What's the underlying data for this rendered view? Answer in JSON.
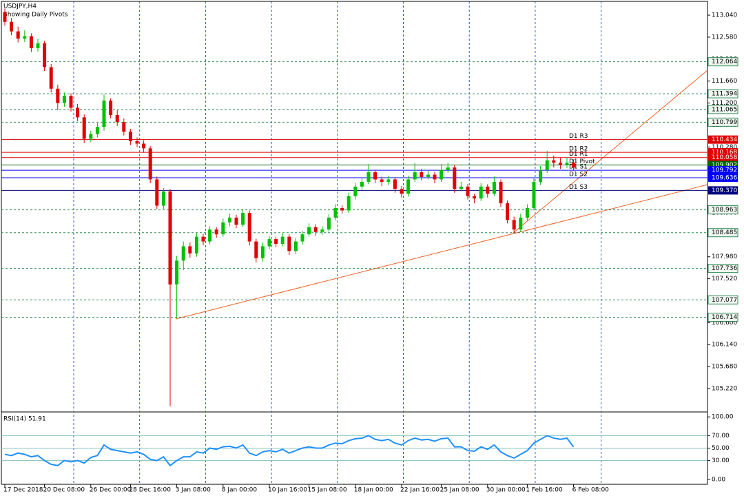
{
  "chart_data": [
    {
      "type": "candlestick",
      "title": "USDJPY,H4",
      "subtitle": "Showing Daily Pivots",
      "categories": [
        "17 Dec 2018",
        null,
        null,
        null,
        null,
        null,
        "20 Dec 08:00",
        null,
        null,
        null,
        null,
        null,
        null,
        "26 Dec 00:00",
        null,
        null,
        null,
        null,
        null,
        "28 Dec 16:00",
        null,
        null,
        null,
        null,
        null,
        null,
        "3 Jan 08:00",
        null,
        null,
        null,
        null,
        null,
        null,
        "8 Jan 00:00",
        null,
        null,
        null,
        null,
        null,
        null,
        "10 Jan 16:00",
        null,
        null,
        null,
        null,
        null,
        "15 Jan 08:00",
        null,
        null,
        null,
        null,
        null,
        null,
        "18 Jan 00:00",
        null,
        null,
        null,
        null,
        null,
        null,
        "22 Jan 16:00",
        null,
        null,
        null,
        null,
        null,
        "25 Jan 08:00",
        null,
        null,
        null,
        null,
        null,
        null,
        "30 Jan 00:00",
        null,
        null,
        null,
        null,
        null,
        "1 Feb 16:00",
        null,
        null,
        null,
        null,
        null,
        null,
        "6 Feb 08:00"
      ],
      "ohlc": [
        [
          113.1,
          113.18,
          112.82,
          112.9
        ],
        [
          112.9,
          112.98,
          112.62,
          112.7
        ],
        [
          112.7,
          112.8,
          112.47,
          112.55
        ],
        [
          112.55,
          112.72,
          112.48,
          112.6
        ],
        [
          112.6,
          112.66,
          112.27,
          112.35
        ],
        [
          112.35,
          112.55,
          112.28,
          112.45
        ],
        [
          112.45,
          112.5,
          111.87,
          111.95
        ],
        [
          111.95,
          112.02,
          111.42,
          111.5
        ],
        [
          111.5,
          111.58,
          111.05,
          111.2
        ],
        [
          111.2,
          111.42,
          111.12,
          111.35
        ],
        [
          111.35,
          111.4,
          111.02,
          111.1
        ],
        [
          111.1,
          111.18,
          110.82,
          110.9
        ],
        [
          110.9,
          110.96,
          110.36,
          110.45
        ],
        [
          110.45,
          110.62,
          110.38,
          110.55
        ],
        [
          110.55,
          110.78,
          110.48,
          110.7
        ],
        [
          110.7,
          111.38,
          110.62,
          111.25
        ],
        [
          111.25,
          111.3,
          110.88,
          110.95
        ],
        [
          110.95,
          111.05,
          110.72,
          110.8
        ],
        [
          110.8,
          110.88,
          110.52,
          110.6
        ],
        [
          110.6,
          110.66,
          110.32,
          110.4
        ],
        [
          110.4,
          110.48,
          110.28,
          110.35
        ],
        [
          110.35,
          110.42,
          110.16,
          110.25
        ],
        [
          110.25,
          110.3,
          109.52,
          109.6
        ],
        [
          109.6,
          109.66,
          108.98,
          109.05
        ],
        [
          109.05,
          109.42,
          108.98,
          109.35
        ],
        [
          109.35,
          109.4,
          104.85,
          107.4
        ],
        [
          107.4,
          108.0,
          106.69,
          107.9
        ],
        [
          107.9,
          108.3,
          107.7,
          108.2
        ],
        [
          108.2,
          108.28,
          107.96,
          108.05
        ],
        [
          108.05,
          108.48,
          107.98,
          108.4
        ],
        [
          108.4,
          108.46,
          108.22,
          108.3
        ],
        [
          108.3,
          108.62,
          108.24,
          108.55
        ],
        [
          108.55,
          108.6,
          108.38,
          108.45
        ],
        [
          108.45,
          108.78,
          108.4,
          108.7
        ],
        [
          108.7,
          108.88,
          108.62,
          108.8
        ],
        [
          108.8,
          108.86,
          108.58,
          108.65
        ],
        [
          108.65,
          108.98,
          108.6,
          108.9
        ],
        [
          108.9,
          108.95,
          108.22,
          108.3
        ],
        [
          108.3,
          108.36,
          107.86,
          107.95
        ],
        [
          107.95,
          108.28,
          107.88,
          108.2
        ],
        [
          108.2,
          108.42,
          108.14,
          108.35
        ],
        [
          108.35,
          108.4,
          108.18,
          108.25
        ],
        [
          108.25,
          108.48,
          108.2,
          108.4
        ],
        [
          108.4,
          108.45,
          108.02,
          108.1
        ],
        [
          108.1,
          108.38,
          108.04,
          108.3
        ],
        [
          108.3,
          108.52,
          108.24,
          108.45
        ],
        [
          108.45,
          108.68,
          108.4,
          108.6
        ],
        [
          108.6,
          108.66,
          108.42,
          108.5
        ],
        [
          108.5,
          108.62,
          108.44,
          108.55
        ],
        [
          108.55,
          108.88,
          108.5,
          108.8
        ],
        [
          108.8,
          109.08,
          108.74,
          109.0
        ],
        [
          109.0,
          109.06,
          108.88,
          108.95
        ],
        [
          108.95,
          109.32,
          108.9,
          109.25
        ],
        [
          109.25,
          109.52,
          109.18,
          109.45
        ],
        [
          109.45,
          109.62,
          109.38,
          109.55
        ],
        [
          109.55,
          109.92,
          109.5,
          109.75
        ],
        [
          109.75,
          109.8,
          109.52,
          109.6
        ],
        [
          109.6,
          109.66,
          109.46,
          109.55
        ],
        [
          109.55,
          109.68,
          109.48,
          109.6
        ],
        [
          109.6,
          109.65,
          109.32,
          109.4
        ],
        [
          109.4,
          109.46,
          109.22,
          109.3
        ],
        [
          109.3,
          109.68,
          109.24,
          109.6
        ],
        [
          109.6,
          109.95,
          109.55,
          109.75
        ],
        [
          109.75,
          109.82,
          109.58,
          109.65
        ],
        [
          109.65,
          109.78,
          109.6,
          109.7
        ],
        [
          109.7,
          109.76,
          109.52,
          109.6
        ],
        [
          109.6,
          109.92,
          109.55,
          109.8
        ],
        [
          109.8,
          109.95,
          109.74,
          109.85
        ],
        [
          109.85,
          109.9,
          109.32,
          109.4
        ],
        [
          109.4,
          109.55,
          109.35,
          109.45
        ],
        [
          109.45,
          109.5,
          109.18,
          109.25
        ],
        [
          109.25,
          109.3,
          109.1,
          109.2
        ],
        [
          109.2,
          109.52,
          109.15,
          109.45
        ],
        [
          109.45,
          109.5,
          109.22,
          109.3
        ],
        [
          109.3,
          109.66,
          109.25,
          109.55
        ],
        [
          109.55,
          109.6,
          109.02,
          109.1
        ],
        [
          109.1,
          109.16,
          108.68,
          108.75
        ],
        [
          108.75,
          108.82,
          108.48,
          108.55
        ],
        [
          108.55,
          108.88,
          108.5,
          108.8
        ],
        [
          108.8,
          109.08,
          108.74,
          109.0
        ],
        [
          109.0,
          109.62,
          108.95,
          109.55
        ],
        [
          109.55,
          109.88,
          109.48,
          109.8
        ],
        [
          109.8,
          110.2,
          109.74,
          110.0
        ],
        [
          110.0,
          110.1,
          109.85,
          109.95
        ],
        [
          109.95,
          110.05,
          109.82,
          109.9
        ],
        [
          109.9,
          110.06,
          109.84,
          109.95
        ],
        [
          109.95,
          110.02,
          109.78,
          109.85
        ]
      ],
      "up_color": "#00c000",
      "down_color": "#e00000",
      "ylim": [
        104.744,
        113.329
      ],
      "yticks": [
        {
          "value": 113.04,
          "label": "113.040"
        },
        {
          "value": 112.58,
          "label": "112.580"
        },
        {
          "value": 112.12,
          "label": "112.120"
        },
        {
          "value": 111.66,
          "label": "111.660"
        },
        {
          "value": 111.2,
          "label": "111.200"
        },
        {
          "value": 110.74,
          "label": "110.740"
        },
        {
          "value": 110.28,
          "label": "110.280"
        },
        {
          "value": 109.82,
          "label": "109.820"
        },
        {
          "value": 109.36,
          "label": "109.360"
        },
        {
          "value": 108.9,
          "label": "108.900"
        },
        {
          "value": 108.44,
          "label": "108.440"
        },
        {
          "value": 107.98,
          "label": "107.980"
        },
        {
          "value": 107.52,
          "label": "107.520"
        },
        {
          "value": 107.06,
          "label": "107.060"
        },
        {
          "value": 106.6,
          "label": "106.600"
        },
        {
          "value": 106.14,
          "label": "106.140"
        },
        {
          "value": 105.68,
          "label": "105.680"
        },
        {
          "value": 105.22,
          "label": "105.220"
        }
      ],
      "levels": [
        {
          "value": 112.064,
          "label": "112.064"
        },
        {
          "value": 111.394,
          "label": "111.394"
        },
        {
          "value": 111.065,
          "label": "111.065"
        },
        {
          "value": 110.799,
          "label": "110.799"
        },
        {
          "value": 108.963,
          "label": "108.963"
        },
        {
          "value": 108.485,
          "label": "108.485"
        },
        {
          "value": 107.736,
          "label": "107.736"
        },
        {
          "value": 107.077,
          "label": "107.077"
        },
        {
          "value": 106.714,
          "label": "106.714"
        }
      ],
      "level_color": "#2e8b57",
      "pivots": [
        {
          "name": "D1 R3",
          "value": 110.434,
          "label": "110.434",
          "color": "#e00000"
        },
        {
          "name": "D1 R2",
          "value": 110.168,
          "label": "110.168",
          "color": "#e00000"
        },
        {
          "name": "D1 R1",
          "value": 110.058,
          "label": "110.058",
          "color": "#e00000"
        },
        {
          "name": "D1 Pivot",
          "value": 109.902,
          "label": "109.902",
          "color": "#006400"
        },
        {
          "name": "D1 S1",
          "value": 109.792,
          "label": "109.792",
          "color": "#0000ff"
        },
        {
          "name": "D1 S2",
          "value": 109.636,
          "label": "109.636",
          "color": "#0000ff"
        },
        {
          "name": "D1 S3",
          "value": 109.37,
          "label": "109.370",
          "color": "#000080"
        }
      ]
    },
    {
      "type": "line",
      "title": "RSI(14) 51.91",
      "values": [
        40,
        38,
        42,
        40,
        36,
        38,
        30,
        24,
        22,
        30,
        28,
        30,
        26,
        35,
        38,
        55,
        48,
        46,
        44,
        42,
        44,
        40,
        32,
        30,
        36,
        22,
        30,
        36,
        36,
        44,
        42,
        50,
        48,
        52,
        53,
        50,
        55,
        42,
        38,
        44,
        46,
        44,
        48,
        42,
        46,
        50,
        52,
        50,
        50,
        55,
        58,
        57,
        62,
        65,
        66,
        70,
        64,
        62,
        64,
        58,
        55,
        62,
        66,
        63,
        64,
        61,
        65,
        66,
        52,
        52,
        46,
        45,
        52,
        48,
        55,
        44,
        38,
        34,
        40,
        46,
        58,
        64,
        70,
        66,
        64,
        66,
        51.91
      ],
      "color": "#1e90ff",
      "ylim": [
        -8,
        105.7
      ],
      "yticks": [
        {
          "value": 100,
          "label": "100.00"
        },
        {
          "value": 70,
          "label": "70.00"
        },
        {
          "value": 50,
          "label": "50.00"
        },
        {
          "value": 30,
          "label": "30.00"
        },
        {
          "value": 0,
          "label": "0.00"
        }
      ],
      "levels": [
        70,
        50,
        30
      ]
    }
  ]
}
